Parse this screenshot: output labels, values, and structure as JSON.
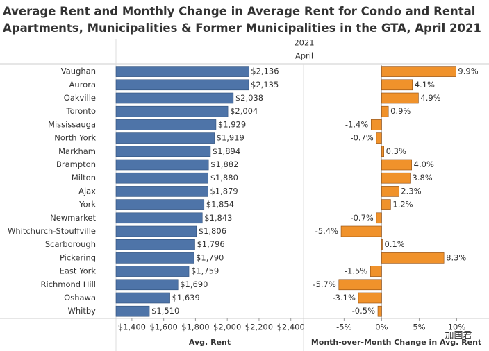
{
  "title": [
    "Average Rent and Monthly Change in Average Rent for Condo and Rental",
    "Apartments, Municipalities & Former Municipalities in the GTA, April 2021"
  ],
  "column_header": {
    "year": "2021",
    "month": "April"
  },
  "watermark": "加国君",
  "chart_data": [
    {
      "type": "hbar",
      "x_label": "Avg. Rent",
      "color": "#4e74a8",
      "categories": [
        "Vaughan",
        "Aurora",
        "Oakville",
        "Toronto",
        "Mississauga",
        "North York",
        "Markham",
        "Brampton",
        "Milton",
        "Ajax",
        "York",
        "Newmarket",
        "Whitchurch-Stouffville",
        "Scarborough",
        "Pickering",
        "East York",
        "Richmond Hill",
        "Oshawa",
        "Whitby"
      ],
      "values": [
        2136,
        2135,
        2038,
        2004,
        1929,
        1919,
        1894,
        1882,
        1880,
        1879,
        1854,
        1843,
        1806,
        1796,
        1790,
        1759,
        1690,
        1639,
        1510
      ],
      "value_labels": [
        "$2,136",
        "$2,135",
        "$2,038",
        "$2,004",
        "$1,929",
        "$1,919",
        "$1,894",
        "$1,882",
        "$1,880",
        "$1,879",
        "$1,854",
        "$1,843",
        "$1,806",
        "$1,796",
        "$1,790",
        "$1,759",
        "$1,690",
        "$1,639",
        "$1,510"
      ],
      "xlim": [
        1300,
        2480
      ],
      "xticks": [
        {
          "value": 1400,
          "label": "$1,400"
        },
        {
          "value": 1600,
          "label": "$1,600"
        },
        {
          "value": 1800,
          "label": "$1,800"
        },
        {
          "value": 2000,
          "label": "$2,000"
        },
        {
          "value": 2200,
          "label": "$2,200"
        },
        {
          "value": 2400,
          "label": "$2,400"
        }
      ]
    },
    {
      "type": "hbar",
      "x_label": "Month-over-Month Change in Avg. Rent",
      "color": "#f0922b",
      "values": [
        9.9,
        4.1,
        4.9,
        0.9,
        -1.4,
        -0.7,
        0.3,
        4.0,
        3.8,
        2.3,
        1.2,
        -0.7,
        -5.4,
        0.1,
        8.3,
        -1.5,
        -5.7,
        -3.1,
        -0.5
      ],
      "value_labels": [
        "9.9%",
        "4.1%",
        "4.9%",
        "0.9%",
        "-1.4%",
        "-0.7%",
        "0.3%",
        "4.0%",
        "3.8%",
        "2.3%",
        "1.2%",
        "-0.7%",
        "-5.4%",
        "0.1%",
        "8.3%",
        "-1.5%",
        "-5.7%",
        "-3.1%",
        "-0.5%"
      ],
      "xlim": [
        -10.4,
        14.3
      ],
      "xticks": [
        {
          "value": -5,
          "label": "-5%"
        },
        {
          "value": 0,
          "label": "0%"
        },
        {
          "value": 5,
          "label": "5%"
        },
        {
          "value": 10,
          "label": "10%"
        }
      ]
    }
  ]
}
